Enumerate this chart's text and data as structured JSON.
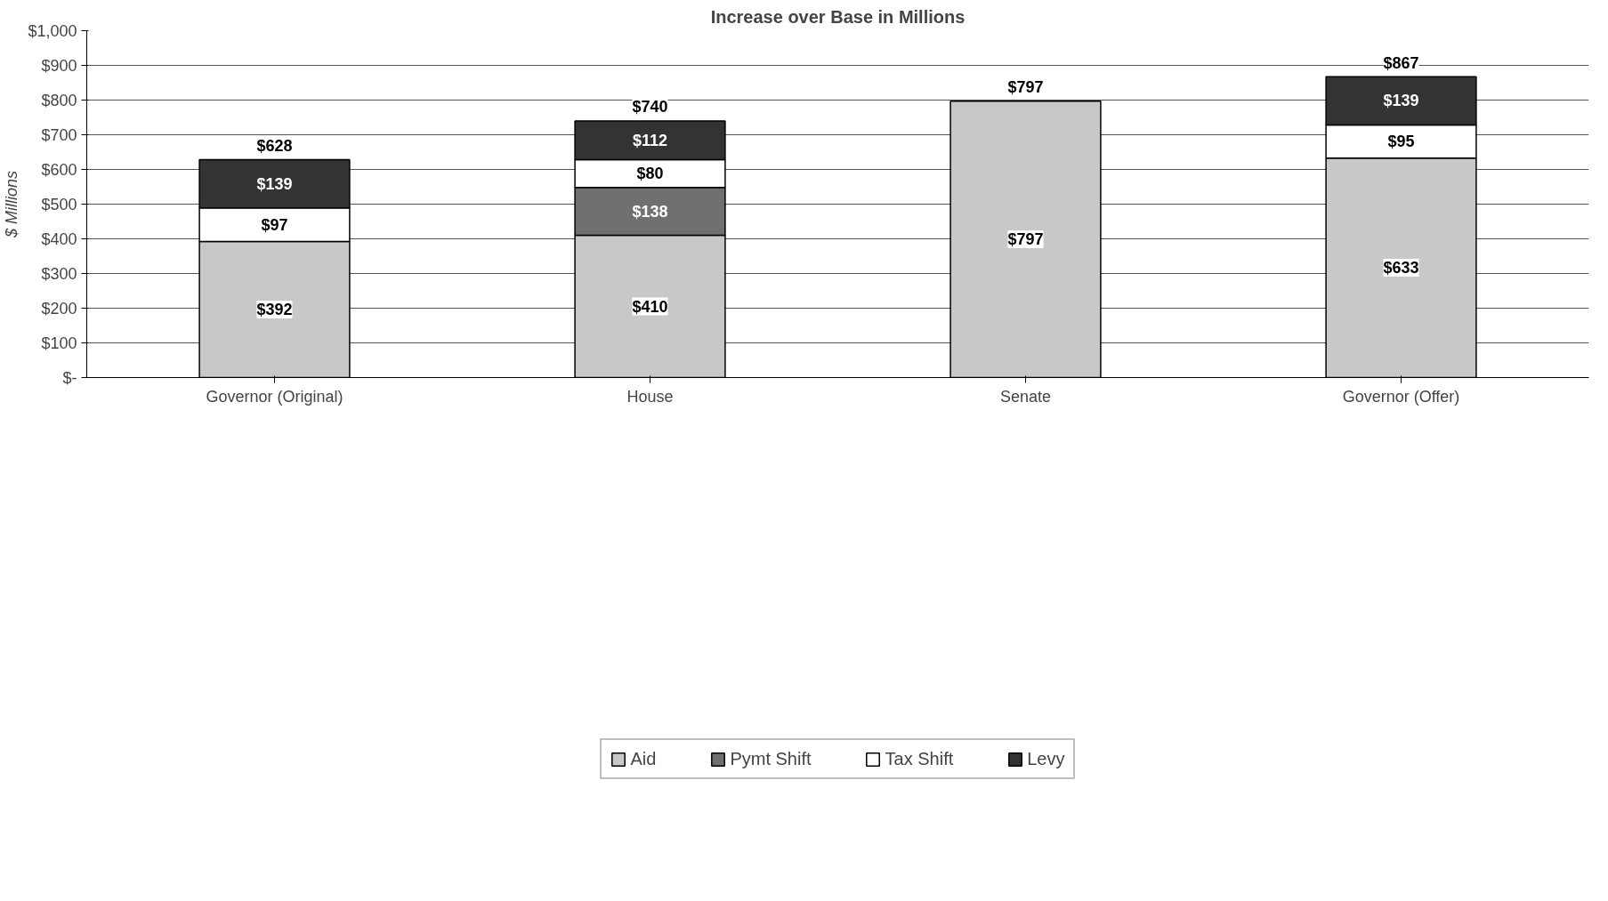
{
  "chart_data": {
    "type": "bar",
    "title": "Increase over Base in Millions",
    "ylabel": "$ Millions",
    "stacked": true,
    "categories": [
      "Governor (Original)",
      "House",
      "Senate",
      "Governor (Offer)"
    ],
    "series": [
      {
        "name": "Aid",
        "color": "#c8c8c8",
        "values": [
          392,
          410,
          797,
          633
        ],
        "value_labels": [
          "$392",
          "$410",
          "$797",
          "$633"
        ]
      },
      {
        "name": "Pymt Shift",
        "color": "#707070",
        "values": [
          null,
          138,
          null,
          null
        ],
        "value_labels": [
          null,
          "$138",
          null,
          null
        ]
      },
      {
        "name": "Tax Shift",
        "color": "#ffffff",
        "values": [
          97,
          80,
          null,
          95
        ],
        "value_labels": [
          "$97",
          "$80",
          null,
          "$95"
        ]
      },
      {
        "name": "Levy",
        "color": "#333333",
        "values": [
          139,
          112,
          null,
          139
        ],
        "value_labels": [
          "$139",
          "$112",
          null,
          "$139"
        ]
      }
    ],
    "totals": [
      "$628",
      "$740",
      "$797",
      "$867"
    ],
    "ylim": [
      0,
      1000
    ],
    "yticks": [
      {
        "value": 0,
        "label": "$-"
      },
      {
        "value": 100,
        "label": "$100"
      },
      {
        "value": 200,
        "label": "$200"
      },
      {
        "value": 300,
        "label": "$300"
      },
      {
        "value": 400,
        "label": "$400"
      },
      {
        "value": 500,
        "label": "$500"
      },
      {
        "value": 600,
        "label": "$600"
      },
      {
        "value": 700,
        "label": "$700"
      },
      {
        "value": 800,
        "label": "$800"
      },
      {
        "value": 900,
        "label": "$900"
      },
      {
        "value": 1000,
        "label": "$1,000"
      }
    ],
    "grid": "y",
    "legend": "bottom"
  }
}
